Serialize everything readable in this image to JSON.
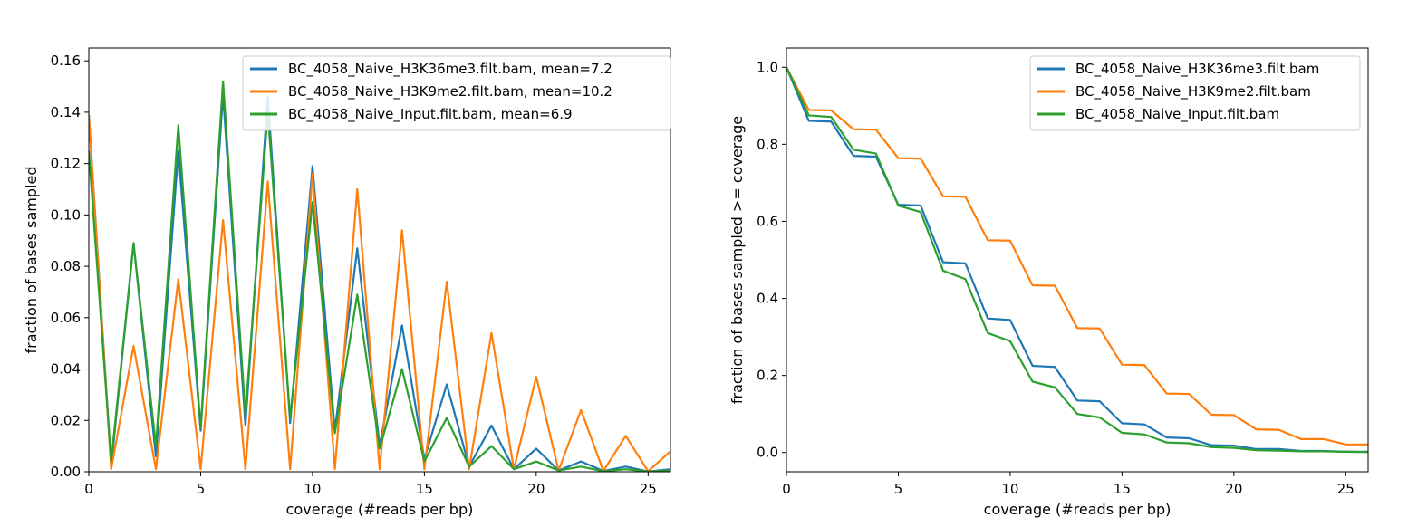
{
  "colors": {
    "blue": "#1f77b4",
    "orange": "#ff7f0e",
    "green": "#2ca02c"
  },
  "chart_data": [
    {
      "type": "line",
      "title": "",
      "xlabel": "coverage (#reads per bp)",
      "ylabel": "fraction of bases sampled",
      "xlim": [
        0,
        26
      ],
      "ylim": [
        0,
        0.165
      ],
      "xticks": [
        0,
        5,
        10,
        15,
        20,
        25
      ],
      "xtick_labels": [
        "0",
        "5",
        "10",
        "15",
        "20",
        "25"
      ],
      "yticks": [
        0,
        0.02,
        0.04,
        0.06,
        0.08,
        0.1,
        0.12,
        0.14,
        0.16
      ],
      "ytick_labels": [
        "0.00",
        "0.02",
        "0.04",
        "0.06",
        "0.08",
        "0.10",
        "0.12",
        "0.14",
        "0.16"
      ],
      "grid": false,
      "legend_position": "top-right",
      "x": [
        0,
        1,
        2,
        3,
        4,
        5,
        6,
        7,
        8,
        9,
        10,
        11,
        12,
        13,
        14,
        15,
        16,
        17,
        18,
        19,
        20,
        21,
        22,
        23,
        24,
        25,
        26
      ],
      "series": [
        {
          "name": "BC_4058_Naive_H3K36me3.filt.bam, mean=7.2",
          "color": "#1f77b4",
          "values": [
            0.139,
            0.002,
            0.089,
            0.006,
            0.125,
            0.016,
            0.147,
            0.018,
            0.146,
            0.019,
            0.119,
            0.016,
            0.087,
            0.01,
            0.057,
            0.005,
            0.034,
            0.002,
            0.018,
            0.001,
            0.009,
            0.0005,
            0.004,
            0.0003,
            0.002,
            0.0001,
            0.001
          ]
        },
        {
          "name": "BC_4058_Naive_H3K9me2.filt.bam, mean=10.2",
          "color": "#ff7f0e",
          "values": [
            0.139,
            0.001,
            0.049,
            0.001,
            0.075,
            0.001,
            0.098,
            0.001,
            0.113,
            0.001,
            0.116,
            0.001,
            0.11,
            0.001,
            0.094,
            0.001,
            0.074,
            0.001,
            0.054,
            0.001,
            0.037,
            0.0005,
            0.024,
            0.0003,
            0.014,
            0.0002,
            0.008
          ]
        },
        {
          "name": "BC_4058_Naive_Input.filt.bam, mean=6.9",
          "color": "#2ca02c",
          "values": [
            0.125,
            0.004,
            0.089,
            0.01,
            0.135,
            0.017,
            0.152,
            0.022,
            0.14,
            0.021,
            0.105,
            0.015,
            0.069,
            0.009,
            0.04,
            0.004,
            0.021,
            0.002,
            0.01,
            0.001,
            0.004,
            0.0005,
            0.002,
            0.0002,
            0.001,
            0.0001,
            0.0005
          ]
        }
      ]
    },
    {
      "type": "line",
      "title": "",
      "xlabel": "coverage (#reads per bp)",
      "ylabel": "fraction of bases sampled >= coverage",
      "xlim": [
        0,
        26
      ],
      "ylim": [
        -0.05,
        1.05
      ],
      "xticks": [
        0,
        5,
        10,
        15,
        20,
        25
      ],
      "xtick_labels": [
        "0",
        "5",
        "10",
        "15",
        "20",
        "25"
      ],
      "yticks": [
        0.0,
        0.2,
        0.4,
        0.6,
        0.8,
        1.0
      ],
      "ytick_labels": [
        "0.0",
        "0.2",
        "0.4",
        "0.6",
        "0.8",
        "1.0"
      ],
      "grid": false,
      "legend_position": "top-right",
      "x": [
        0,
        1,
        2,
        3,
        4,
        5,
        6,
        7,
        8,
        9,
        10,
        11,
        12,
        13,
        14,
        15,
        16,
        17,
        18,
        19,
        20,
        21,
        22,
        23,
        24,
        25,
        26
      ],
      "series": [
        {
          "name": "BC_4058_Naive_H3K36me3.filt.bam",
          "color": "#1f77b4",
          "values": [
            1.0,
            0.861,
            0.859,
            0.77,
            0.768,
            0.643,
            0.641,
            0.494,
            0.491,
            0.348,
            0.344,
            0.225,
            0.222,
            0.135,
            0.133,
            0.076,
            0.073,
            0.039,
            0.037,
            0.019,
            0.018,
            0.009,
            0.009,
            0.004,
            0.004,
            0.002,
            0.002
          ]
        },
        {
          "name": "BC_4058_Naive_H3K9me2.filt.bam",
          "color": "#ff7f0e",
          "values": [
            1.0,
            0.889,
            0.888,
            0.839,
            0.838,
            0.764,
            0.763,
            0.665,
            0.664,
            0.551,
            0.55,
            0.434,
            0.433,
            0.323,
            0.322,
            0.228,
            0.227,
            0.153,
            0.152,
            0.098,
            0.097,
            0.06,
            0.059,
            0.035,
            0.035,
            0.021,
            0.021
          ]
        },
        {
          "name": "BC_4058_Naive_Input.filt.bam",
          "color": "#2ca02c",
          "values": [
            1.0,
            0.875,
            0.871,
            0.786,
            0.776,
            0.641,
            0.624,
            0.472,
            0.45,
            0.31,
            0.289,
            0.184,
            0.169,
            0.1,
            0.091,
            0.051,
            0.047,
            0.026,
            0.024,
            0.014,
            0.012,
            0.006,
            0.005,
            0.003,
            0.003,
            0.002,
            0.001
          ]
        }
      ]
    }
  ]
}
